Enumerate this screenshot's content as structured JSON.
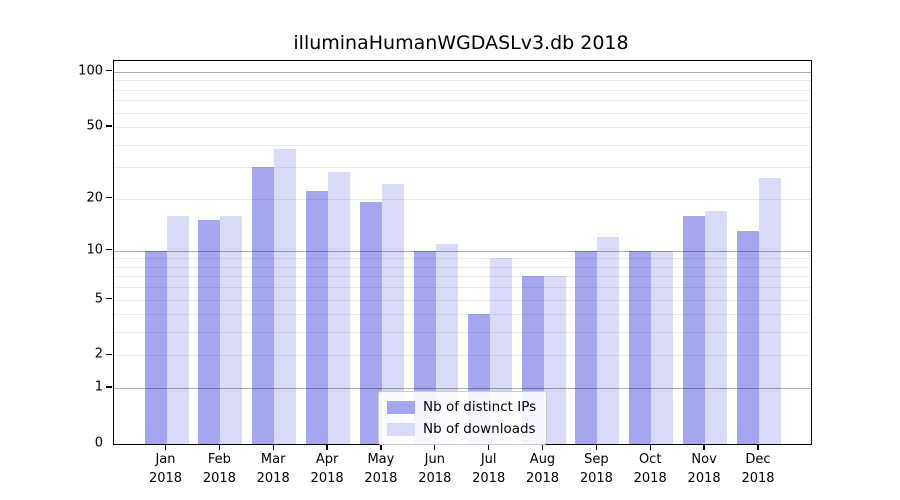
{
  "title": "illuminaHumanWGDASLv3.db 2018",
  "chart_data": {
    "type": "bar",
    "title": "illuminaHumanWGDASLv3.db 2018",
    "categories": [
      "Jan\n2018",
      "Feb\n2018",
      "Mar\n2018",
      "Apr\n2018",
      "May\n2018",
      "Jun\n2018",
      "Jul\n2018",
      "Aug\n2018",
      "Sep\n2018",
      "Oct\n2018",
      "Nov\n2018",
      "Dec\n2018"
    ],
    "series": [
      {
        "name": "Nb of distinct IPs",
        "color": "#a5a5f0",
        "values": [
          10,
          15,
          30,
          22,
          19,
          10,
          4,
          7,
          10,
          10,
          16,
          13
        ]
      },
      {
        "name": "Nb of downloads",
        "color": "#d9d9f8",
        "values": [
          16,
          16,
          38,
          28,
          24,
          11,
          9,
          7,
          12,
          10,
          17,
          26
        ]
      }
    ],
    "xlabel": "",
    "ylabel": "",
    "y_axis": {
      "scale": "log1p",
      "tick_labels": [
        "0",
        "1",
        "2",
        "5",
        "10",
        "20",
        "50",
        "100"
      ],
      "ticks": [
        0,
        1,
        2,
        5,
        10,
        20,
        50,
        100
      ],
      "range": [
        0,
        115
      ]
    },
    "grid": {
      "on": true,
      "decade_lines": [
        1,
        10,
        100
      ],
      "minor_lines": [
        2,
        3,
        4,
        5,
        6,
        7,
        8,
        9,
        20,
        30,
        40,
        50,
        60,
        70,
        80,
        90
      ],
      "grid_above_bars": true
    },
    "legend": {
      "position": "lower-center",
      "entries": [
        "Nb of distinct IPs",
        "Nb of downloads"
      ]
    },
    "colors": {
      "background": "#ffffff",
      "spine": "#000000",
      "decade_grid": "#adadad",
      "minor_grid": "#ececec"
    }
  }
}
